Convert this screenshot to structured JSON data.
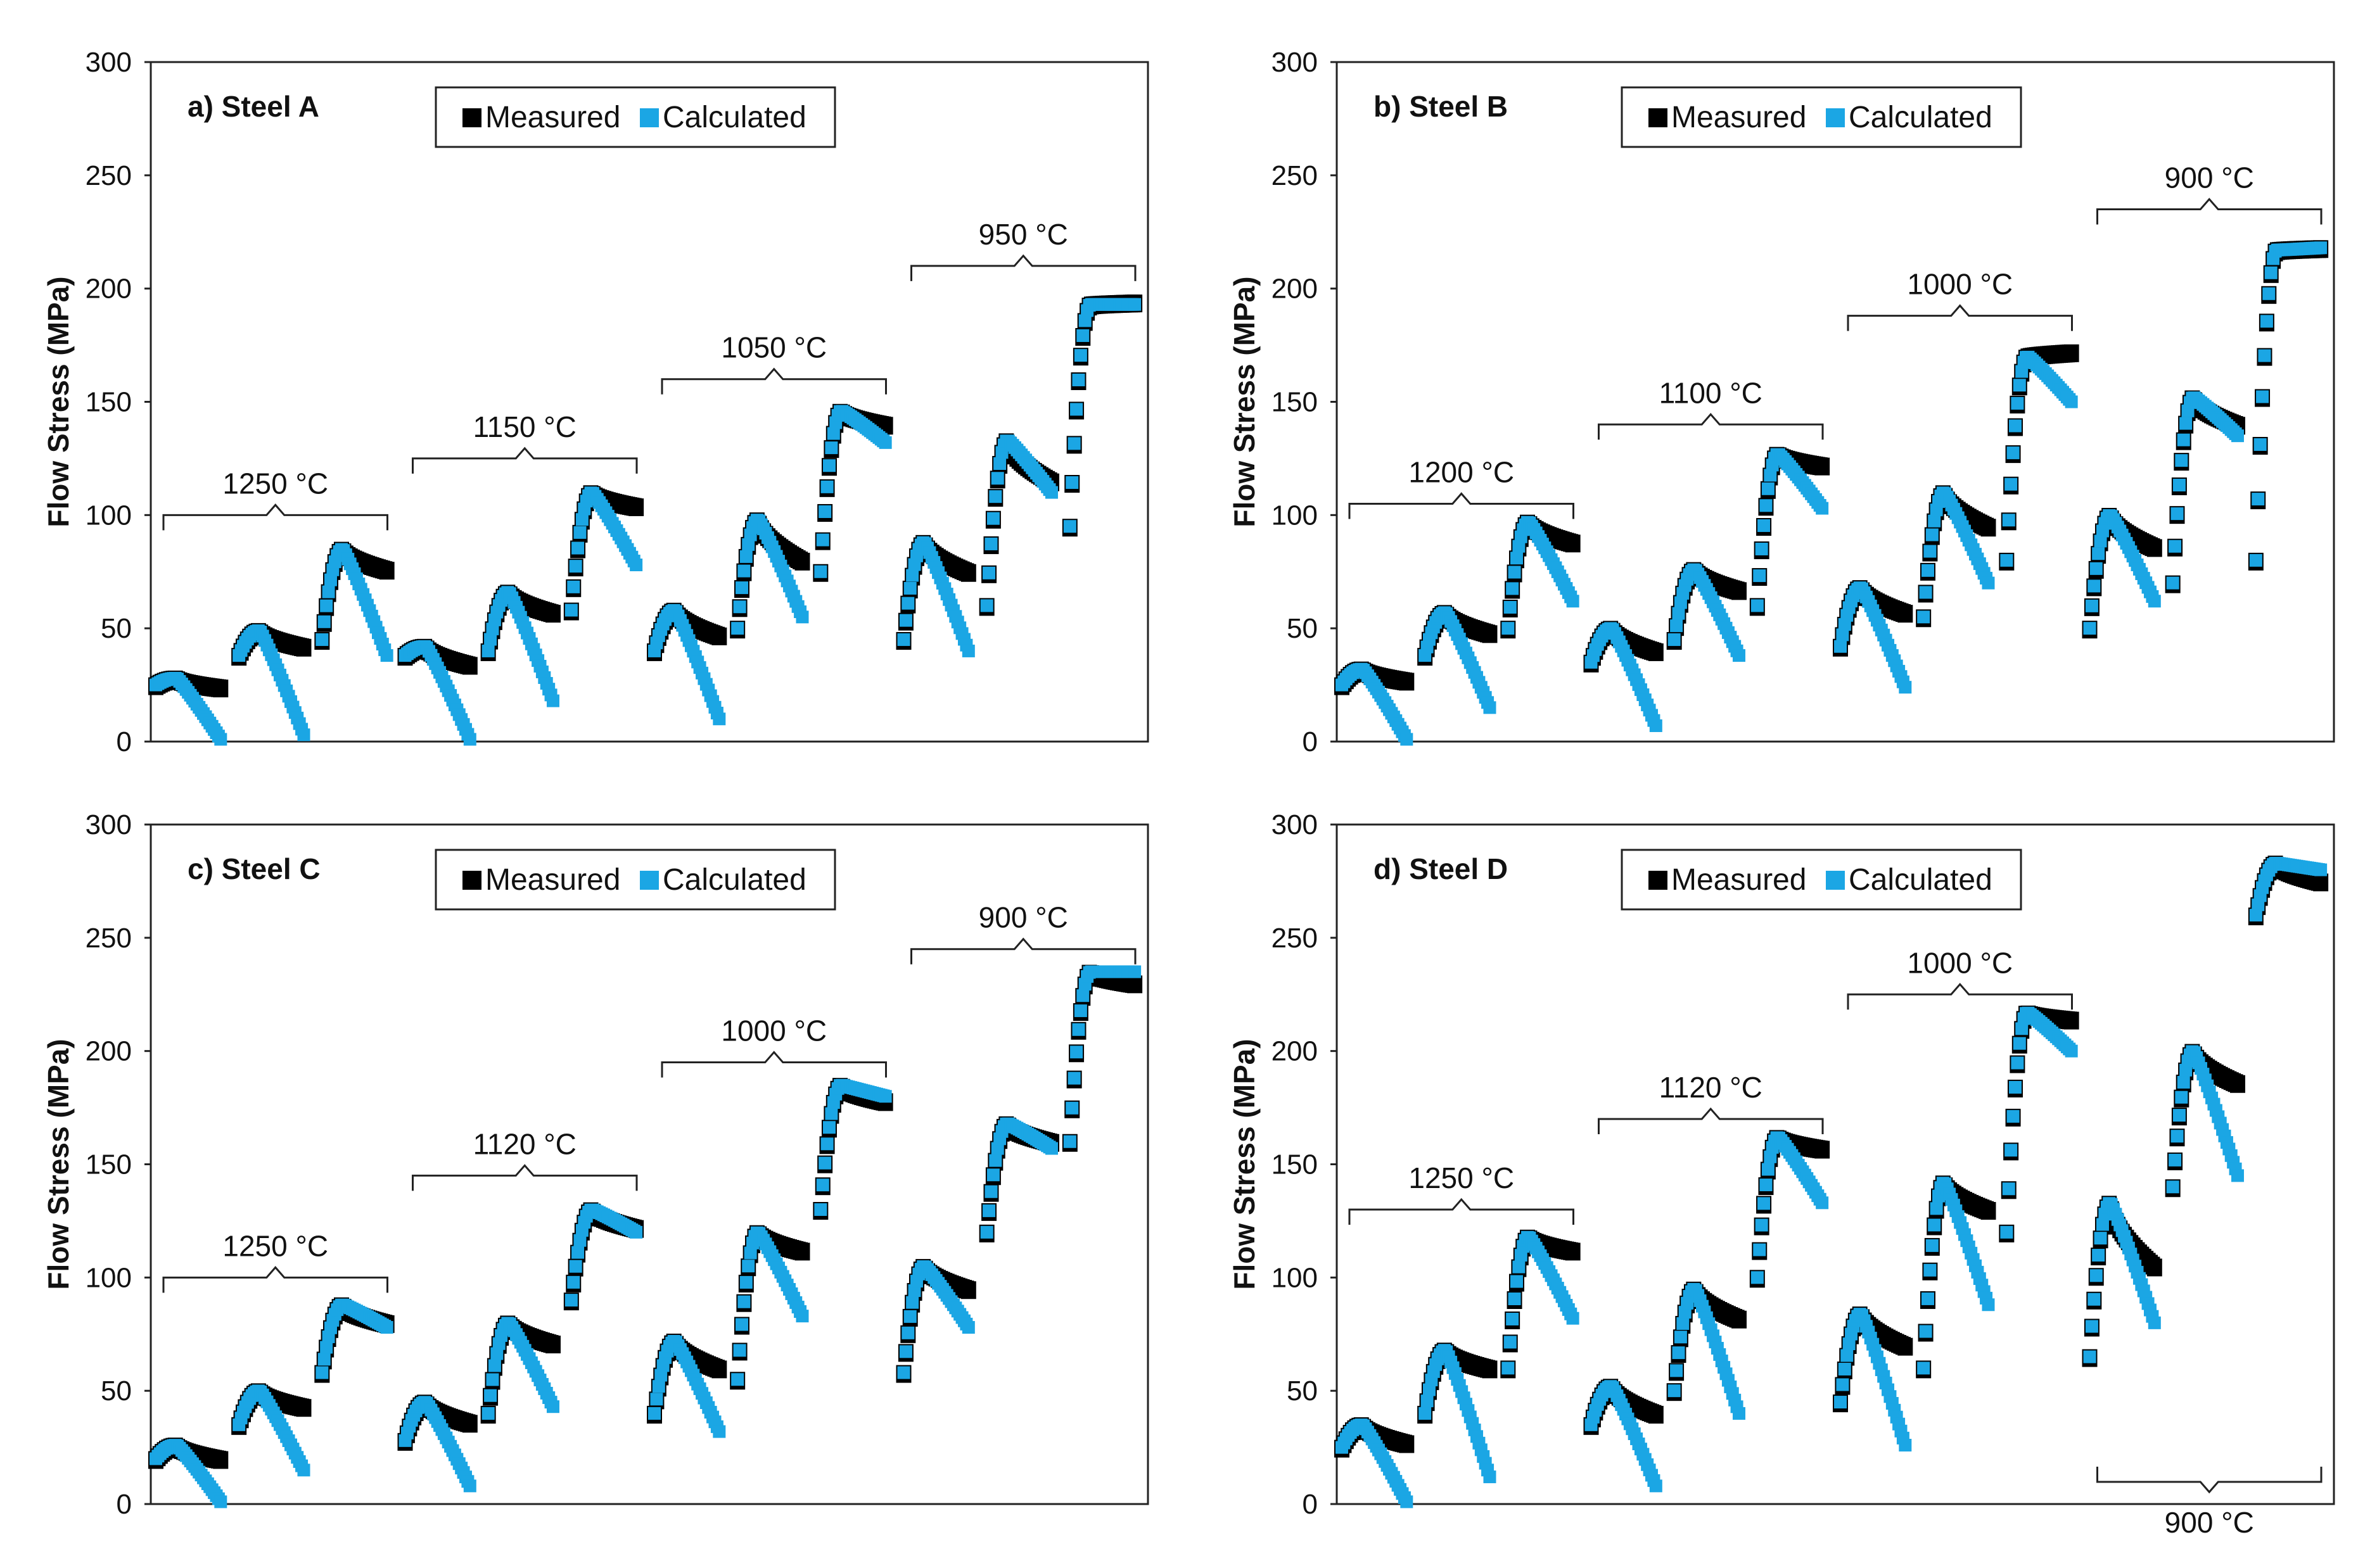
{
  "colors": {
    "measured": "#000000",
    "calculated": "#1ba6e4"
  },
  "legend": {
    "measured": "Measured",
    "calculated": "Calculated"
  },
  "chart_data": [
    {
      "type": "scatter",
      "title": "a) Steel A",
      "ylabel": "Flow Stress (MPa)",
      "ylim": [
        0,
        300
      ],
      "yticks": [
        "0",
        "50",
        "100",
        "150",
        "200",
        "250",
        "300"
      ],
      "legend_position": "top-center",
      "pass_profile_columns": [
        "start",
        "peak",
        "end_measured",
        "end_calculated"
      ],
      "temperature_groups": [
        {
          "label": "1250 °C",
          "passes": [
            [
              25,
              28,
              24,
              1
            ],
            [
              38,
              49,
              42,
              3
            ],
            [
              45,
              85,
              76,
              38
            ]
          ]
        },
        {
          "label": "1150 °C",
          "passes": [
            [
              38,
              42,
              34,
              1
            ],
            [
              40,
              66,
              57,
              18
            ],
            [
              58,
              110,
              104,
              78
            ]
          ]
        },
        {
          "label": "1050 °C",
          "passes": [
            [
              40,
              58,
              47,
              10
            ],
            [
              50,
              98,
              80,
              55
            ],
            [
              75,
              146,
              140,
              132
            ]
          ]
        },
        {
          "label": "950 °C",
          "passes": [
            [
              45,
              88,
              75,
              40
            ],
            [
              60,
              133,
              115,
              110
            ],
            [
              95,
              193,
              194,
              193
            ]
          ]
        }
      ]
    },
    {
      "type": "scatter",
      "title": "b) Steel B",
      "ylabel": "Flow Stress (MPa)",
      "ylim": [
        0,
        300
      ],
      "yticks": [
        "0",
        "50",
        "100",
        "150",
        "200",
        "250",
        "300"
      ],
      "legend_position": "top-center",
      "pass_profile_columns": [
        "start",
        "peak",
        "end_measured",
        "end_calculated"
      ],
      "temperature_groups": [
        {
          "label": "1200 °C",
          "passes": [
            [
              25,
              32,
              27,
              1
            ],
            [
              38,
              57,
              48,
              15
            ],
            [
              50,
              97,
              88,
              62
            ]
          ]
        },
        {
          "label": "1100 °C",
          "passes": [
            [
              35,
              50,
              40,
              7
            ],
            [
              45,
              76,
              67,
              38
            ],
            [
              60,
              127,
              122,
              103
            ]
          ]
        },
        {
          "label": "1000 °C",
          "passes": [
            [
              42,
              68,
              57,
              24
            ],
            [
              55,
              110,
              95,
              70
            ],
            [
              80,
              170,
              172,
              150
            ]
          ]
        },
        {
          "label": "900 °C",
          "passes": [
            [
              50,
              100,
              86,
              62
            ],
            [
              70,
              152,
              140,
              135
            ],
            [
              80,
              217,
              218,
              218
            ]
          ]
        }
      ]
    },
    {
      "type": "scatter",
      "title": "c) Steel C",
      "ylabel": "Flow Stress (MPa)",
      "ylim": [
        0,
        300
      ],
      "yticks": [
        "0",
        "50",
        "100",
        "150",
        "200",
        "250",
        "300"
      ],
      "legend_position": "top-center",
      "pass_profile_columns": [
        "start",
        "peak",
        "end_measured",
        "end_calculated"
      ],
      "temperature_groups": [
        {
          "label": "1250 °C",
          "passes": [
            [
              20,
              26,
              20,
              1
            ],
            [
              35,
              50,
              43,
              15
            ],
            [
              58,
              88,
              80,
              78
            ]
          ]
        },
        {
          "label": "1120 °C",
          "passes": [
            [
              28,
              45,
              36,
              8
            ],
            [
              40,
              80,
              71,
              43
            ],
            [
              90,
              130,
              122,
              120
            ]
          ]
        },
        {
          "label": "1000 °C",
          "passes": [
            [
              40,
              72,
              60,
              32
            ],
            [
              55,
              120,
              112,
              83
            ],
            [
              130,
              185,
              178,
              180
            ]
          ]
        },
        {
          "label": "900 °C",
          "passes": [
            [
              58,
              105,
              95,
              78
            ],
            [
              120,
              168,
              160,
              157
            ],
            [
              160,
              235,
              230,
              235
            ]
          ]
        }
      ]
    },
    {
      "type": "scatter",
      "title": "d) Steel D",
      "ylabel": "Flow Stress (MPa)",
      "ylim": [
        0,
        300
      ],
      "yticks": [
        "0",
        "50",
        "100",
        "150",
        "200",
        "250",
        "300"
      ],
      "legend_position": "top-center",
      "pass_profile_columns": [
        "start",
        "peak",
        "end_measured",
        "end_calculated"
      ],
      "temperature_groups": [
        {
          "label": "1250 °C",
          "passes": [
            [
              25,
              35,
              27,
              1
            ],
            [
              40,
              68,
              60,
              12
            ],
            [
              60,
              118,
              112,
              82
            ]
          ]
        },
        {
          "label": "1120 °C",
          "passes": [
            [
              35,
              52,
              40,
              8
            ],
            [
              50,
              95,
              82,
              40
            ],
            [
              100,
              162,
              157,
              133
            ]
          ]
        },
        {
          "label": "1000 °C",
          "passes": [
            [
              45,
              84,
              70,
              26
            ],
            [
              60,
              142,
              130,
              88
            ],
            [
              120,
              217,
              214,
              200
            ]
          ]
        },
        {
          "label": "900 °C",
          "passes": [
            [
              65,
              133,
              105,
              80
            ],
            [
              140,
              200,
              186,
              145
            ],
            [
              260,
              283,
              275,
              280
            ]
          ]
        }
      ]
    }
  ]
}
